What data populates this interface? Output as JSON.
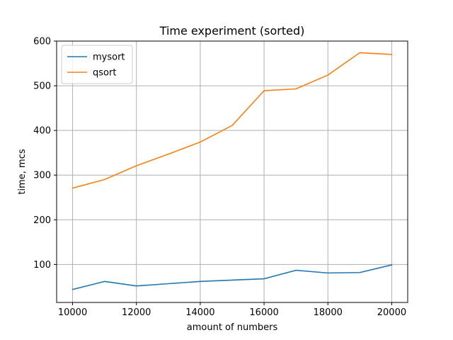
{
  "chart_data": {
    "type": "line",
    "title": "Time experiment (sorted)",
    "xlabel": "amount of numbers",
    "ylabel": "time, mcs",
    "x": [
      10000,
      11000,
      12000,
      13000,
      14000,
      15000,
      16000,
      17000,
      18000,
      19000,
      20000
    ],
    "xlim": [
      9500,
      20500
    ],
    "ylim": [
      15,
      600
    ],
    "xticks": [
      10000,
      12000,
      14000,
      16000,
      18000,
      20000
    ],
    "yticks": [
      100,
      200,
      300,
      400,
      500,
      600
    ],
    "grid": true,
    "legend_position": "top-left",
    "series": [
      {
        "name": "mysort",
        "color": "#1f77b4",
        "values": [
          44,
          62,
          52,
          57,
          62,
          65,
          68,
          87,
          81,
          82,
          99
        ]
      },
      {
        "name": "qsort",
        "color": "#ff7f0e",
        "values": [
          271,
          290,
          321,
          347,
          374,
          411,
          489,
          493,
          524,
          574,
          570
        ]
      }
    ]
  }
}
